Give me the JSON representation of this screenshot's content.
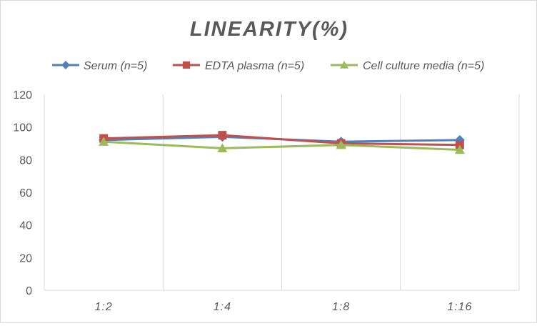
{
  "chart_data": {
    "type": "line",
    "title": "LINEARITY(%)",
    "xlabel": "",
    "ylabel": "",
    "categories": [
      "1:2",
      "1:4",
      "1:8",
      "1:16"
    ],
    "ylim": [
      0,
      120
    ],
    "yticks": [
      0,
      20,
      40,
      60,
      80,
      100,
      120
    ],
    "grid": "vertical category lines",
    "legend_position": "top",
    "series": [
      {
        "name": "Serum (n=5)",
        "values": [
          92,
          94,
          91,
          92
        ],
        "color": "#4f81bd",
        "marker": "diamond"
      },
      {
        "name": "EDTA plasma (n=5)",
        "values": [
          93,
          95,
          90,
          89
        ],
        "color": "#c0504d",
        "marker": "square"
      },
      {
        "name": "Cell culture media (n=5)",
        "values": [
          91,
          87,
          89,
          86
        ],
        "color": "#9bbb59",
        "marker": "triangle"
      }
    ]
  }
}
